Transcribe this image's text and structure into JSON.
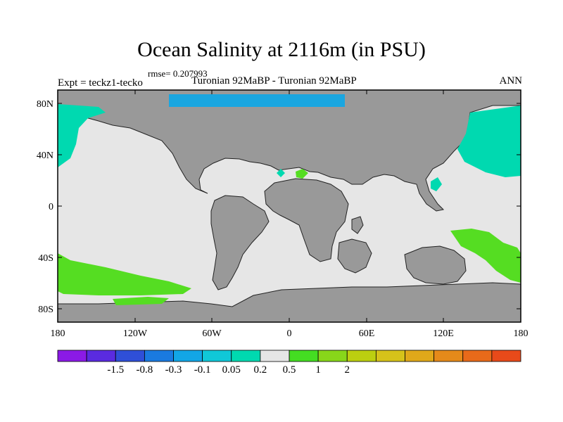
{
  "title": "Ocean Salinity at 2116m (in PSU)",
  "rmse_label": "rmse= 0.207993",
  "experiment_label": "Expt = teckz1-tecko",
  "comparison_label": "Turonian  92MaBP - Turonian  92MaBP",
  "season_label": "ANN",
  "map": {
    "lat_ticks": [
      "80N",
      "40N",
      "0",
      "40S",
      "80S"
    ],
    "lon_ticks": [
      "180",
      "120W",
      "60W",
      "0",
      "60E",
      "120E",
      "180"
    ],
    "colors": {
      "land": "#999999",
      "ocean_neutral": "#e6e6e6",
      "negative_small": "#00d9b0",
      "negative_mid": "#1aa6e0",
      "positive_small": "#55dd22"
    }
  },
  "colorbar": {
    "colors": [
      "#8b1ae6",
      "#5a2be0",
      "#2f4fd8",
      "#1a7ae0",
      "#12a6e6",
      "#10c8d8",
      "#00d9b0",
      "#e6e6e6",
      "#44dd22",
      "#88d61a",
      "#bccf10",
      "#d6c21a",
      "#e0a81a",
      "#e58a1a",
      "#e86a1a",
      "#e84a1a"
    ],
    "labels": [
      "-1.5",
      "-0.8",
      "-0.3",
      "-0.1",
      "0.05",
      "0.2",
      "0.5",
      "1",
      "2"
    ]
  }
}
